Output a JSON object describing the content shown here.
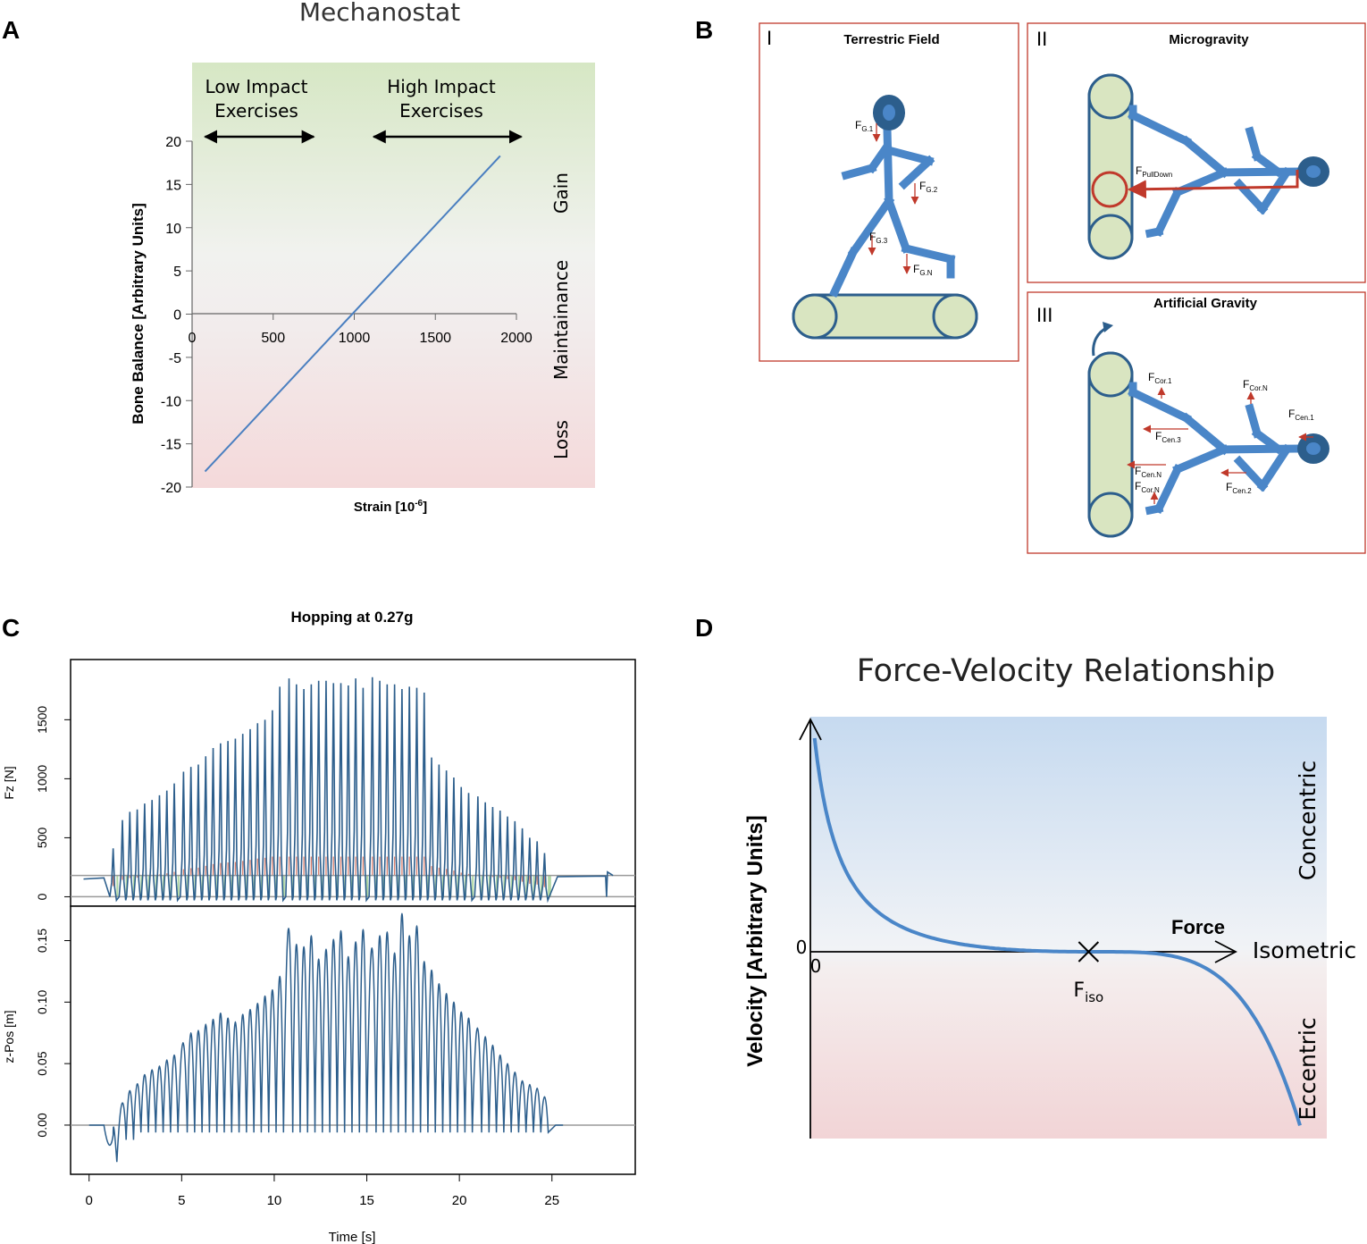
{
  "panel_letters": {
    "a": "A",
    "b": "B",
    "c": "C",
    "d": "D"
  },
  "colors": {
    "line_blue": "#4a7fc0",
    "dark_blue": "#2c5e8c",
    "red": "#c0392b",
    "light_green": "#d9e5c1",
    "figure_blue": "#4a86c8",
    "zone_green": "#d6e7c4",
    "zone_pink": "#f4d9da"
  },
  "chart_data": [
    {
      "id": "A",
      "type": "line",
      "title": "Mechanostat",
      "xlabel": "Strain [10",
      "xlabel_sup": "-6",
      "xlabel_end": "]",
      "ylabel": "Bone Balance [Arbitrary Units]",
      "xlim": [
        0,
        2000
      ],
      "ylim": [
        -20,
        20
      ],
      "xticks": [
        "0",
        "500",
        "1000",
        "1500",
        "2000"
      ],
      "yticks": [
        "20",
        "15",
        "10",
        "5",
        "0",
        "-5",
        "-10",
        "-15",
        "-20"
      ],
      "zones": [
        "Gain",
        "Maintainance",
        "Loss"
      ],
      "annotations": [
        {
          "line1": "Low Impact",
          "line2": "Exercises",
          "range": [
            80,
            750
          ]
        },
        {
          "line1": "High Impact",
          "line2": "Exercises",
          "range": [
            1120,
            2030
          ]
        }
      ],
      "series": [
        {
          "name": "Bone Balance",
          "x": [
            80,
            1900
          ],
          "y": [
            -18.2,
            18.3
          ]
        }
      ]
    },
    {
      "id": "C",
      "type": "line",
      "title": "Hopping at 0.27g",
      "xlabel": "Time [s]",
      "xticks": [
        "0",
        "5",
        "10",
        "15",
        "20",
        "25"
      ],
      "xlim": [
        -1,
        29.5
      ],
      "top": {
        "ylabel": "Fz [N]",
        "yticks": [
          "0",
          "500",
          "1000",
          "1500"
        ],
        "ylim": [
          -80,
          2010
        ],
        "threshold": 180,
        "times": [
          1.3,
          1.8,
          2.2,
          2.6,
          3.0,
          3.4,
          3.8,
          4.2,
          4.6,
          5.1,
          5.5,
          5.9,
          6.3,
          6.7,
          7.1,
          7.5,
          7.9,
          8.3,
          8.7,
          9.1,
          9.5,
          9.9,
          10.3,
          10.8,
          11.2,
          11.6,
          12.0,
          12.4,
          12.8,
          13.2,
          13.6,
          14.0,
          14.4,
          14.8,
          15.3,
          15.7,
          16.1,
          16.5,
          16.9,
          17.3,
          17.7,
          18.1,
          18.5,
          18.9,
          19.3,
          19.7,
          20.1,
          20.5,
          21.0,
          21.4,
          21.8,
          22.2,
          22.6,
          23.0,
          23.4,
          23.8,
          24.2,
          24.6
        ],
        "peaks": [
          410,
          650,
          720,
          740,
          790,
          820,
          860,
          900,
          960,
          1060,
          1100,
          1120,
          1190,
          1260,
          1300,
          1320,
          1340,
          1380,
          1420,
          1470,
          1500,
          1580,
          1780,
          1850,
          1800,
          1760,
          1800,
          1830,
          1830,
          1810,
          1810,
          1790,
          1850,
          1770,
          1860,
          1830,
          1800,
          1800,
          1760,
          1780,
          1770,
          1730,
          1180,
          1120,
          1070,
          1010,
          930,
          880,
          850,
          800,
          760,
          730,
          680,
          640,
          580,
          500,
          470,
          370
        ]
      },
      "bottom": {
        "ylabel": "z-Pos [m]",
        "yticks": [
          "0.00",
          "0.05",
          "0.10",
          "0.15"
        ],
        "ylim": [
          -0.04,
          0.178
        ],
        "times": [
          1.3,
          1.8,
          2.2,
          2.6,
          3.0,
          3.4,
          3.8,
          4.2,
          4.6,
          5.1,
          5.5,
          5.9,
          6.3,
          6.7,
          7.1,
          7.5,
          7.9,
          8.3,
          8.7,
          9.1,
          9.5,
          9.9,
          10.3,
          10.8,
          11.2,
          11.6,
          12.0,
          12.4,
          12.8,
          13.2,
          13.6,
          14.0,
          14.4,
          14.8,
          15.3,
          15.7,
          16.1,
          16.5,
          16.9,
          17.3,
          17.7,
          18.1,
          18.5,
          18.9,
          19.3,
          19.7,
          20.1,
          20.5,
          21.0,
          21.4,
          21.8,
          22.2,
          22.6,
          23.0,
          23.4,
          23.8,
          24.2,
          24.6
        ],
        "peaks": [
          0.006,
          0.028,
          0.034,
          0.038,
          0.044,
          0.048,
          0.051,
          0.056,
          0.06,
          0.07,
          0.078,
          0.08,
          0.085,
          0.089,
          0.094,
          0.09,
          0.087,
          0.093,
          0.097,
          0.102,
          0.108,
          0.113,
          0.124,
          0.163,
          0.15,
          0.148,
          0.157,
          0.138,
          0.146,
          0.154,
          0.161,
          0.14,
          0.152,
          0.162,
          0.147,
          0.157,
          0.16,
          0.143,
          0.175,
          0.157,
          0.165,
          0.136,
          0.129,
          0.118,
          0.11,
          0.103,
          0.095,
          0.09,
          0.082,
          0.075,
          0.068,
          0.06,
          0.053,
          0.046,
          0.039,
          0.036,
          0.033,
          0.026
        ]
      }
    },
    {
      "id": "D",
      "type": "line",
      "title": "Force-Velocity Relationship",
      "xlabel": "Force",
      "ylabel": "Velocity [Arbitrary Units]",
      "zero_x": "0",
      "zero_y": "0",
      "fiso_main": "F",
      "fiso_sub": "iso",
      "zones": [
        "Concentric",
        "Isometric",
        "Eccentric"
      ],
      "xlim": [
        0,
        1.85
      ],
      "ylim": [
        -1.0,
        1.22
      ],
      "fiso_value": 1.0,
      "curve_exponent": 4
    }
  ],
  "panel_b": {
    "sub1": {
      "numeral": "I",
      "title": "Terrestric Field",
      "forces": [
        {
          "main": "F",
          "sub": "G.1"
        },
        {
          "main": "F",
          "sub": "G.2"
        },
        {
          "main": "F",
          "sub": "G.3"
        },
        {
          "main": "F",
          "sub": "G.N"
        }
      ]
    },
    "sub2": {
      "numeral": "II",
      "title": "Microgravity",
      "forces": [
        {
          "main": "F",
          "sub": "PullDown"
        }
      ]
    },
    "sub3": {
      "numeral": "III",
      "title": "Artificial Gravity",
      "forces": [
        {
          "main": "F",
          "sub": "Cor.1"
        },
        {
          "main": "F",
          "sub": "Cor.N"
        },
        {
          "main": "F",
          "sub": "Cen.1"
        },
        {
          "main": "F",
          "sub": "Cen.3"
        },
        {
          "main": "F",
          "sub": "Cen.N"
        },
        {
          "main": "F",
          "sub": "Cor.N"
        },
        {
          "main": "F",
          "sub": "Cen.2"
        }
      ]
    }
  }
}
